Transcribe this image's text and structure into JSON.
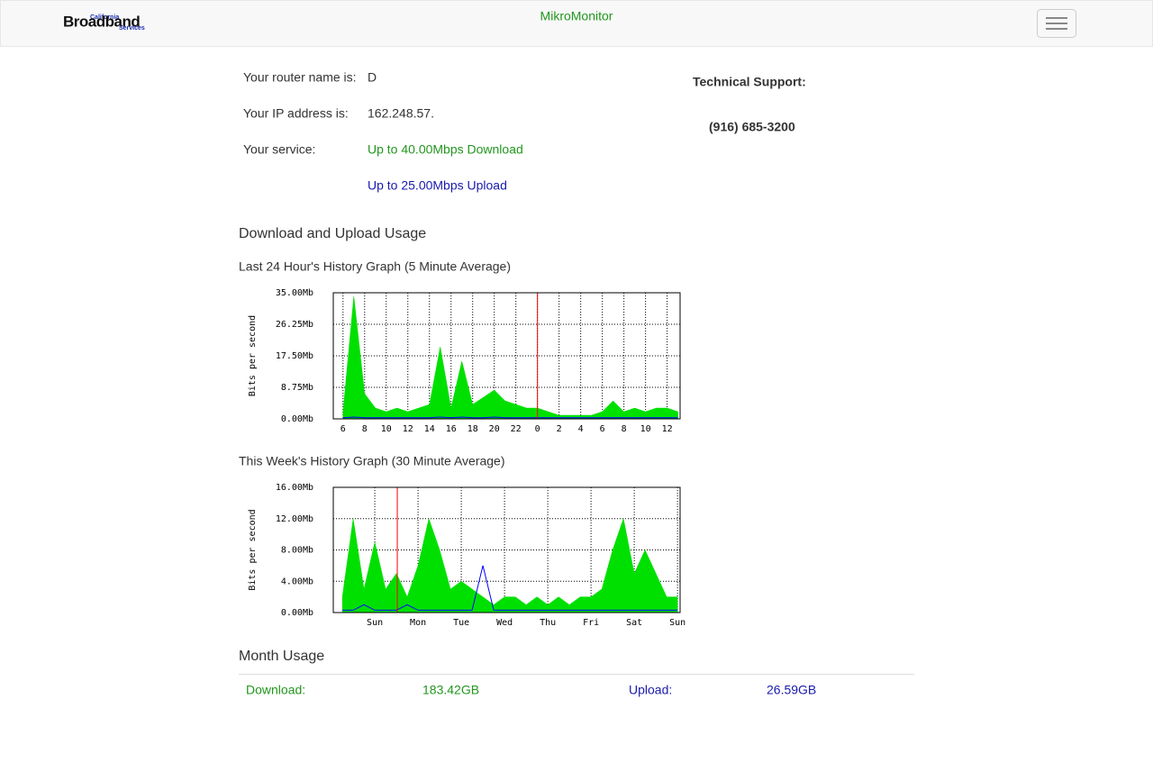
{
  "header": {
    "logo_top": "California",
    "logo": "Broadband",
    "logo_sub": "Services",
    "title": "MikroMonitor"
  },
  "info": {
    "router_label": "Your router name is:",
    "router_value": "D",
    "ip_label": "Your IP address is:",
    "ip_value": "162.248.57.",
    "service_label": "Your service:",
    "download": "Up to 40.00Mbps Download",
    "upload": "Up to 25.00Mbps Upload"
  },
  "support": {
    "label": "Technical Support:",
    "phone": "(916) 685-3200"
  },
  "usage_title": "Download and Upload Usage",
  "chart_data": [
    {
      "type": "area",
      "title": "Last 24 Hour's History Graph (5 Minute Average)",
      "y_label": "Bits per second",
      "xlim": [
        5.1,
        37.2
      ],
      "xticks": [
        6,
        8,
        10,
        12,
        14,
        16,
        18,
        20,
        22,
        {
          "value": 24,
          "label": "0"
        },
        {
          "value": 26,
          "label": "2"
        },
        {
          "value": 28,
          "label": "4"
        },
        {
          "value": 30,
          "label": "6"
        },
        {
          "value": 32,
          "label": "8"
        },
        {
          "value": 34,
          "label": "10"
        },
        {
          "value": 36,
          "label": "12"
        }
      ],
      "ylim": [
        0,
        35
      ],
      "yticks": [
        {
          "value": 0,
          "label": "0.00Mb"
        },
        {
          "value": 8.75,
          "label": "8.75Mb"
        },
        {
          "value": 17.5,
          "label": "17.50Mb"
        },
        {
          "value": 26.25,
          "label": "26.25Mb"
        },
        {
          "value": 35,
          "label": "35.00Mb"
        }
      ],
      "grid": true,
      "marker": {
        "value": 24,
        "color": "#ff0000"
      },
      "x": [
        6,
        7,
        8,
        9,
        10,
        11,
        12,
        13,
        14,
        15,
        16,
        17,
        18,
        19,
        20,
        21,
        22,
        23,
        24,
        25,
        26,
        27,
        28,
        29,
        30,
        31,
        32,
        33,
        34,
        35,
        36,
        37
      ],
      "series": [
        {
          "color": "#00e000",
          "values": [
            2,
            34,
            7,
            3,
            2,
            3,
            2,
            3,
            4,
            20,
            3,
            16,
            4,
            6,
            8,
            5,
            4,
            3,
            3,
            2,
            1,
            1,
            1,
            1,
            2,
            5,
            2,
            3,
            2,
            3,
            3,
            2
          ]
        },
        {
          "color": "#0000ff",
          "values": [
            0.3,
            0.5,
            0.3,
            0.3,
            0.3,
            0.3,
            0.3,
            0.3,
            0.3,
            0.5,
            0.3,
            0.5,
            0.3,
            0.3,
            0.5,
            0.3,
            0.3,
            0.3,
            0.3,
            0.3,
            0.3,
            0.3,
            0.3,
            0.3,
            0.3,
            0.3,
            0.3,
            0.3,
            0.3,
            0.3,
            0.3,
            0.3
          ]
        }
      ]
    },
    {
      "type": "area",
      "title": "This Week's History Graph (30 Minute Average)",
      "y_label": "Bits per second",
      "xlim": [
        0.04,
        8.06
      ],
      "xticks": [
        {
          "value": 1,
          "label": "Sun"
        },
        {
          "value": 2,
          "label": "Mon"
        },
        {
          "value": 3,
          "label": "Tue"
        },
        {
          "value": 4,
          "label": "Wed"
        },
        {
          "value": 5,
          "label": "Thu"
        },
        {
          "value": 6,
          "label": "Fri"
        },
        {
          "value": 7,
          "label": "Sat"
        },
        {
          "value": 8,
          "label": "Sun"
        }
      ],
      "ylim": [
        0,
        16
      ],
      "yticks": [
        {
          "value": 0,
          "label": "0.00Mb"
        },
        {
          "value": 4,
          "label": "4.00Mb"
        },
        {
          "value": 8,
          "label": "8.00Mb"
        },
        {
          "value": 12,
          "label": "12.00Mb"
        },
        {
          "value": 16,
          "label": "16.00Mb"
        }
      ],
      "grid": true,
      "marker": {
        "value": 1.52,
        "color": "#ff0000"
      },
      "x": [
        0.25,
        0.5,
        0.75,
        1,
        1.25,
        1.5,
        1.75,
        2,
        2.25,
        2.5,
        2.75,
        3,
        3.25,
        3.5,
        3.75,
        4,
        4.25,
        4.5,
        4.75,
        5,
        5.25,
        5.5,
        5.75,
        6,
        6.25,
        6.5,
        6.75,
        7,
        7.25,
        7.5,
        7.75,
        8
      ],
      "series": [
        {
          "color": "#00e000",
          "values": [
            2,
            12,
            3,
            9,
            3,
            5,
            2,
            6,
            12,
            8,
            3,
            4,
            3,
            2,
            1,
            2,
            2,
            1,
            2,
            1,
            2,
            1,
            2,
            2,
            3,
            8,
            12,
            5,
            8,
            5,
            2,
            2
          ]
        },
        {
          "color": "#0000ff",
          "values": [
            0.3,
            0.3,
            1,
            0.3,
            0.3,
            0.3,
            1,
            0.3,
            0.3,
            0.3,
            0.3,
            0.3,
            0.3,
            6,
            0.3,
            0.3,
            0.3,
            0.3,
            0.3,
            0.3,
            0.3,
            0.3,
            0.3,
            0.3,
            0.3,
            0.3,
            0.3,
            0.3,
            0.3,
            0.3,
            0.3,
            0.3
          ]
        }
      ]
    }
  ],
  "month": {
    "title": "Month Usage",
    "download_label": "Download:",
    "download_value": "183.42GB",
    "upload_label": "Upload:",
    "upload_value": "26.59GB"
  }
}
